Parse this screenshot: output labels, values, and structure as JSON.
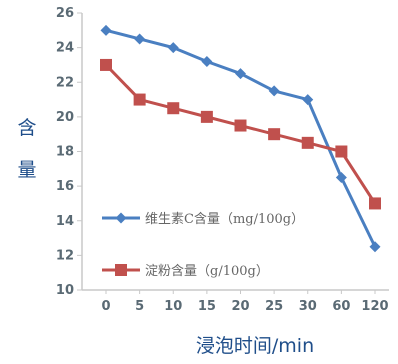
{
  "chart_data": {
    "type": "line",
    "title": "",
    "xlabel": "浸泡时间/min",
    "ylabel": "含量",
    "categories": [
      "0",
      "5",
      "10",
      "15",
      "20",
      "25",
      "30",
      "60",
      "120"
    ],
    "ylim": [
      10,
      26
    ],
    "yticks": [
      10,
      12,
      14,
      16,
      18,
      20,
      22,
      24,
      26
    ],
    "grid": false,
    "legend_position": "bottom-left",
    "series": [
      {
        "name": "维生素C含量（mg/100g）",
        "color": "#4a7fc1",
        "marker": "diamond",
        "values": [
          25.0,
          24.5,
          24.0,
          23.2,
          22.5,
          21.5,
          21.0,
          16.5,
          12.5
        ]
      },
      {
        "name": "淀粉含量（g/100g）",
        "color": "#c0504d",
        "marker": "square",
        "values": [
          23.0,
          21.0,
          20.5,
          20.0,
          19.5,
          19.0,
          18.5,
          18.0,
          15.0
        ]
      }
    ]
  }
}
